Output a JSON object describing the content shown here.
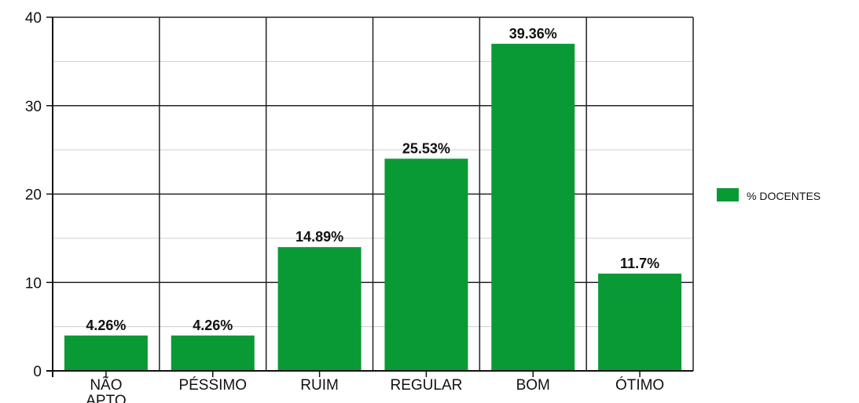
{
  "chart_data": {
    "type": "bar",
    "title": "",
    "xlabel": "",
    "ylabel": "",
    "categories": [
      [
        "NÃO",
        "APTO"
      ],
      [
        "PÉSSIMO"
      ],
      [
        "RUIM"
      ],
      [
        "REGULAR"
      ],
      [
        "BOM"
      ],
      [
        "ÓTIMO"
      ]
    ],
    "series": [
      {
        "name": "% DOCENTES",
        "values": [
          4,
          4,
          14,
          24,
          37,
          11
        ],
        "labels": [
          "4.26%",
          "4.26%",
          "14.89%",
          "25.53%",
          "39.36%",
          "11.7%"
        ],
        "color": "#0a9a35"
      }
    ],
    "ylim": [
      0,
      40
    ],
    "yticks": [
      0,
      10,
      20,
      30,
      40
    ],
    "grid": true,
    "legend": {
      "position": "right",
      "label": "% DOCENTES"
    }
  }
}
